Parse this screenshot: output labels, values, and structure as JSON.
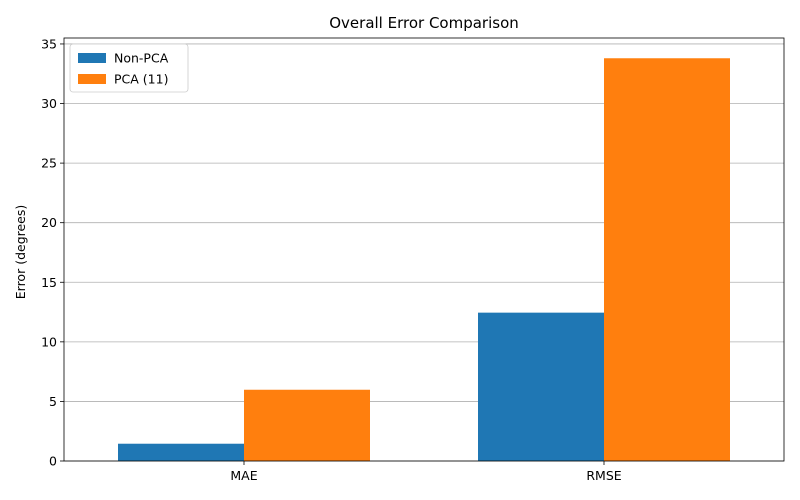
{
  "chart_data": {
    "type": "bar",
    "title": "Overall Error Comparison",
    "xlabel": "",
    "ylabel": "Error (degrees)",
    "categories": [
      "MAE",
      "RMSE"
    ],
    "series": [
      {
        "name": "Non-PCA",
        "values": [
          1.45,
          12.45
        ],
        "color": "#1f77b4"
      },
      {
        "name": "PCA (11)",
        "values": [
          5.98,
          33.8
        ],
        "color": "#ff7f0e"
      }
    ],
    "ylim": [
      0,
      35.5
    ],
    "yticks": [
      0,
      5,
      10,
      15,
      20,
      25,
      30,
      35
    ],
    "ytick_labels": [
      "0",
      "5",
      "10",
      "15",
      "20",
      "25",
      "30",
      "35"
    ],
    "grid": {
      "y": true,
      "x": false,
      "color": "#b0b0b0"
    },
    "legend": {
      "position": "top-left"
    }
  }
}
